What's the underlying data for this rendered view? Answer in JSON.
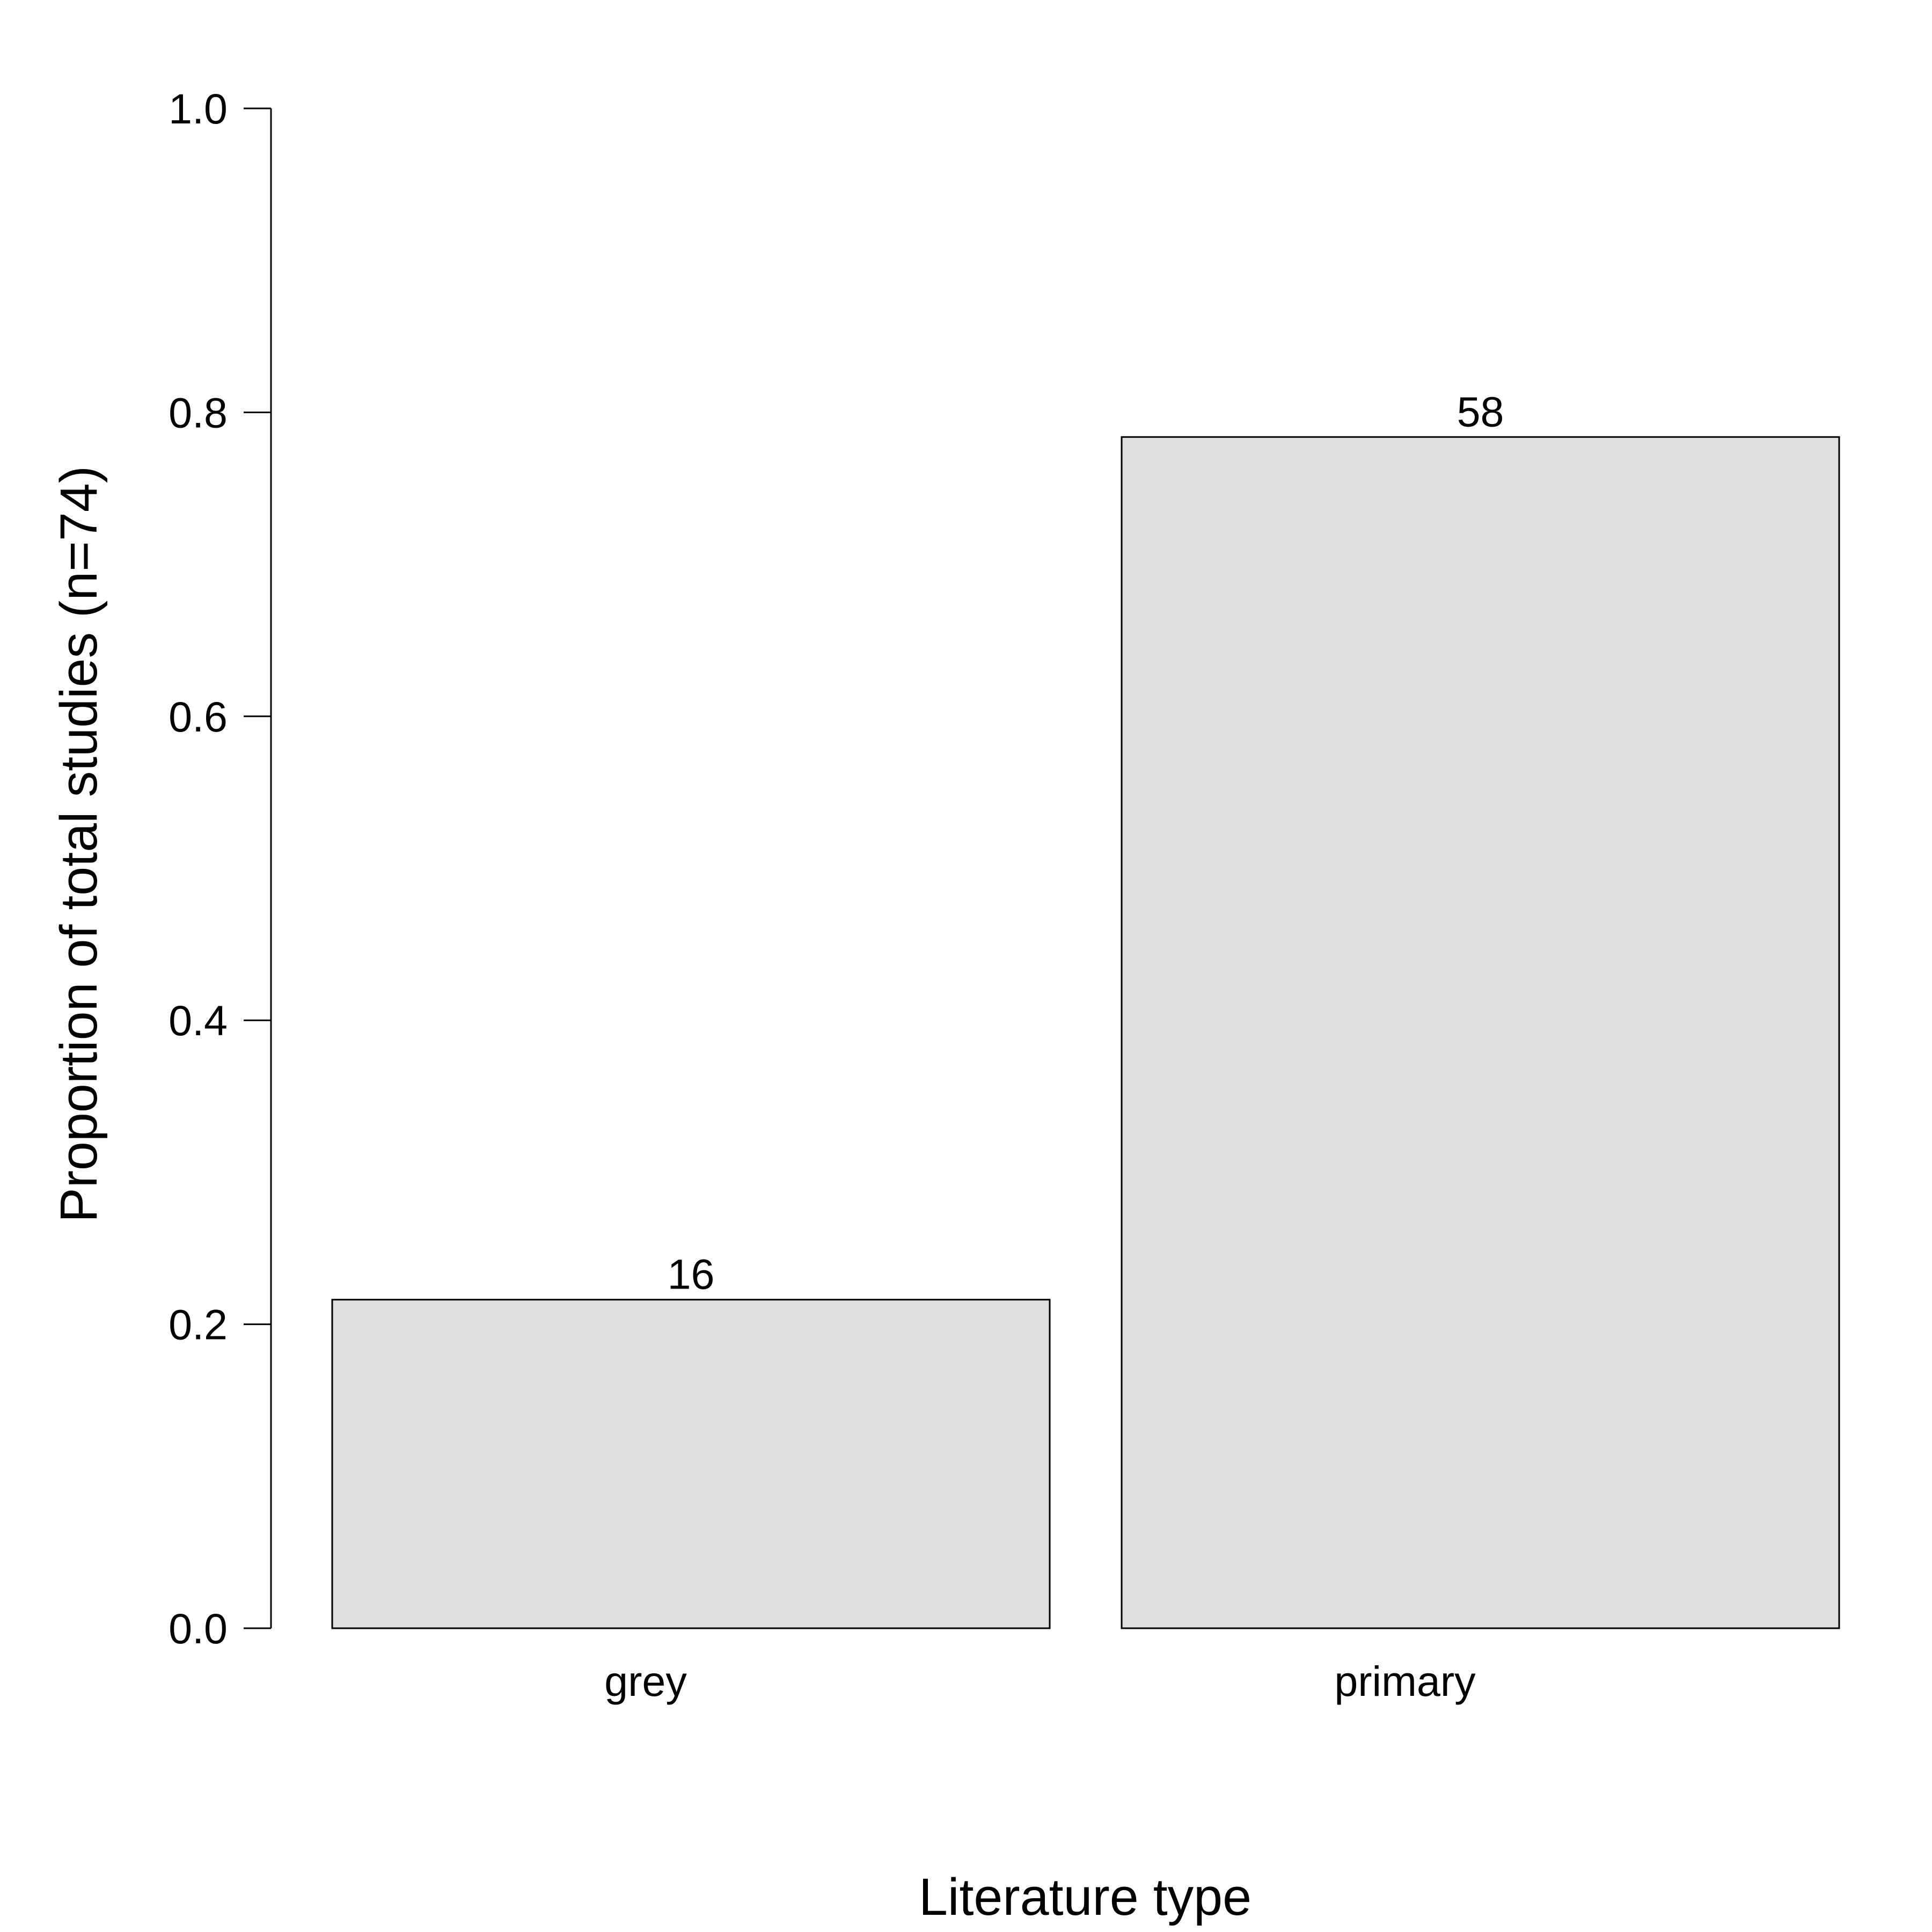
{
  "chart_data": {
    "type": "bar",
    "title": "",
    "xlabel": "Literature type",
    "ylabel": "Proportion of total studies (n=74)",
    "categories": [
      "grey",
      "primary"
    ],
    "values": [
      0.2162,
      0.7838
    ],
    "data_labels": [
      "16",
      "58"
    ],
    "ylim": [
      0,
      1
    ],
    "yticks": [
      0,
      0.2,
      0.4,
      0.6,
      0.8,
      1
    ],
    "ytick_labels": [
      "0.0",
      "0.2",
      "0.4",
      "0.6",
      "0.8",
      "1.0"
    ],
    "grid": false,
    "legend": false,
    "colors": {
      "bar_fill": "#dedede",
      "bar_stroke": "#000000",
      "axis": "#000000",
      "text": "#000000"
    }
  }
}
